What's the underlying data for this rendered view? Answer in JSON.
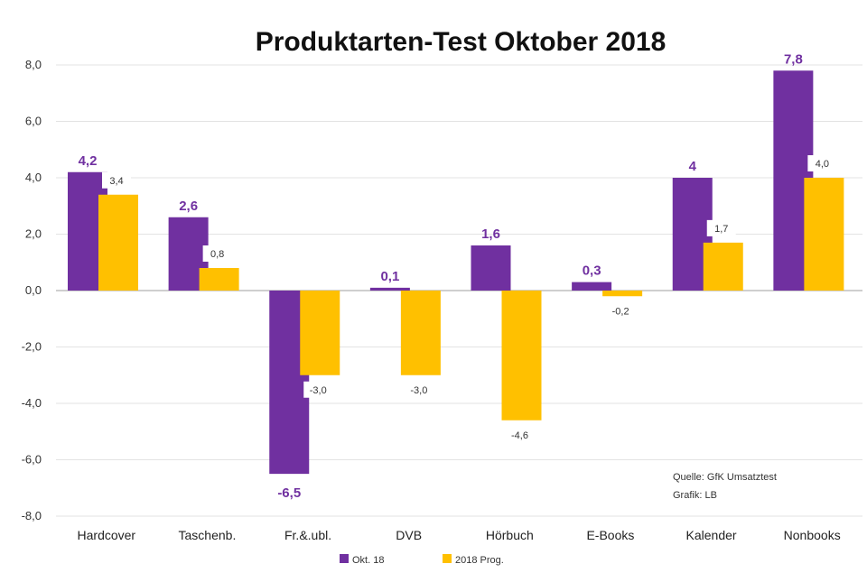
{
  "chart_data": {
    "type": "bar",
    "title": "Produktarten-Test Oktober 2018",
    "categories": [
      "Hardcover",
      "Taschenb.",
      "Fr.&.ubl.",
      "DVB",
      "Hörbuch",
      "E-Books",
      "Kalender",
      "Nonbooks"
    ],
    "series": [
      {
        "name": "Okt. 18",
        "values": [
          4.2,
          2.6,
          -6.5,
          0.1,
          1.6,
          0.3,
          4.0,
          7.8
        ],
        "labels": [
          "4,2",
          "2,6",
          "-6,5",
          "0,1",
          "1,6",
          "0,3",
          "4",
          "7,8"
        ],
        "color": "#7030a0"
      },
      {
        "name": "2018 Prog.",
        "values": [
          3.4,
          0.8,
          -3.0,
          -3.0,
          -4.6,
          -0.2,
          1.7,
          4.0
        ],
        "labels": [
          "3,4",
          "0,8",
          "-3,0",
          "-3,0",
          "-4,6",
          "-0,2",
          "1,7",
          "4,0"
        ],
        "color": "#ffc000"
      }
    ],
    "ylim": [
      -8,
      8
    ],
    "yticks": [
      "-8,0",
      "-6,0",
      "-4,0",
      "-2,0",
      "0,0",
      "2,0",
      "4,0",
      "6,0",
      "8,0"
    ],
    "grid": true,
    "legend": "bottom-center"
  },
  "notes": {
    "source": "Quelle: GfK Umsatztest",
    "graphic": "Grafik: LB"
  }
}
